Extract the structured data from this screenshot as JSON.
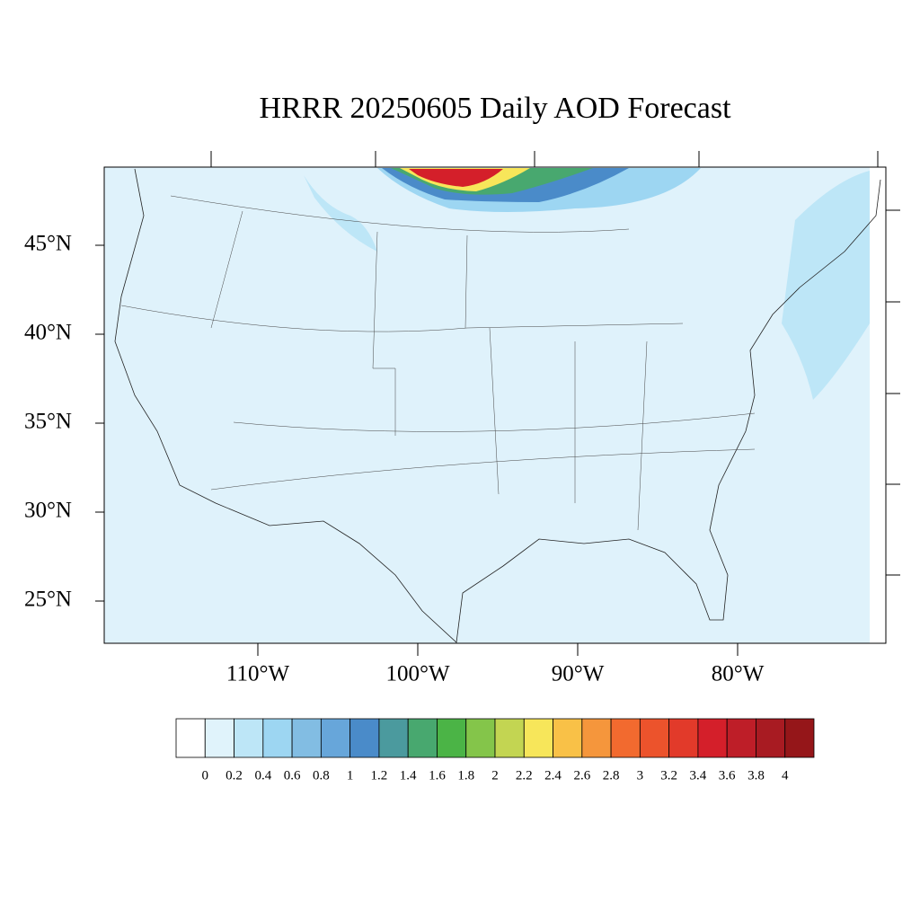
{
  "title": "HRRR 20250605 Daily AOD Forecast",
  "map": {
    "lat_labels": [
      "45°N",
      "40°N",
      "35°N",
      "30°N",
      "25°N"
    ],
    "lon_labels": [
      "110°W",
      "100°W",
      "90°W",
      "80°W"
    ]
  },
  "colorbar": {
    "colors": [
      "#ffffff",
      "#e0f3fb",
      "#bde6f7",
      "#9dd6f2",
      "#82bde3",
      "#67a6da",
      "#4a8bc9",
      "#4b9a9e",
      "#48a86f",
      "#4bb446",
      "#84c54a",
      "#c3d552",
      "#f7e65a",
      "#f9c147",
      "#f5963c",
      "#f26a2f",
      "#ec532c",
      "#e23a2a",
      "#d41f2a",
      "#be1e28",
      "#a81b22",
      "#951619"
    ],
    "labels": [
      0,
      0.2,
      0.4,
      0.6,
      0.8,
      1,
      1.2,
      1.4,
      1.6,
      1.8,
      2,
      2.2,
      2.4,
      2.6,
      2.8,
      3,
      3.2,
      3.4,
      3.6,
      3.8,
      4
    ]
  }
}
